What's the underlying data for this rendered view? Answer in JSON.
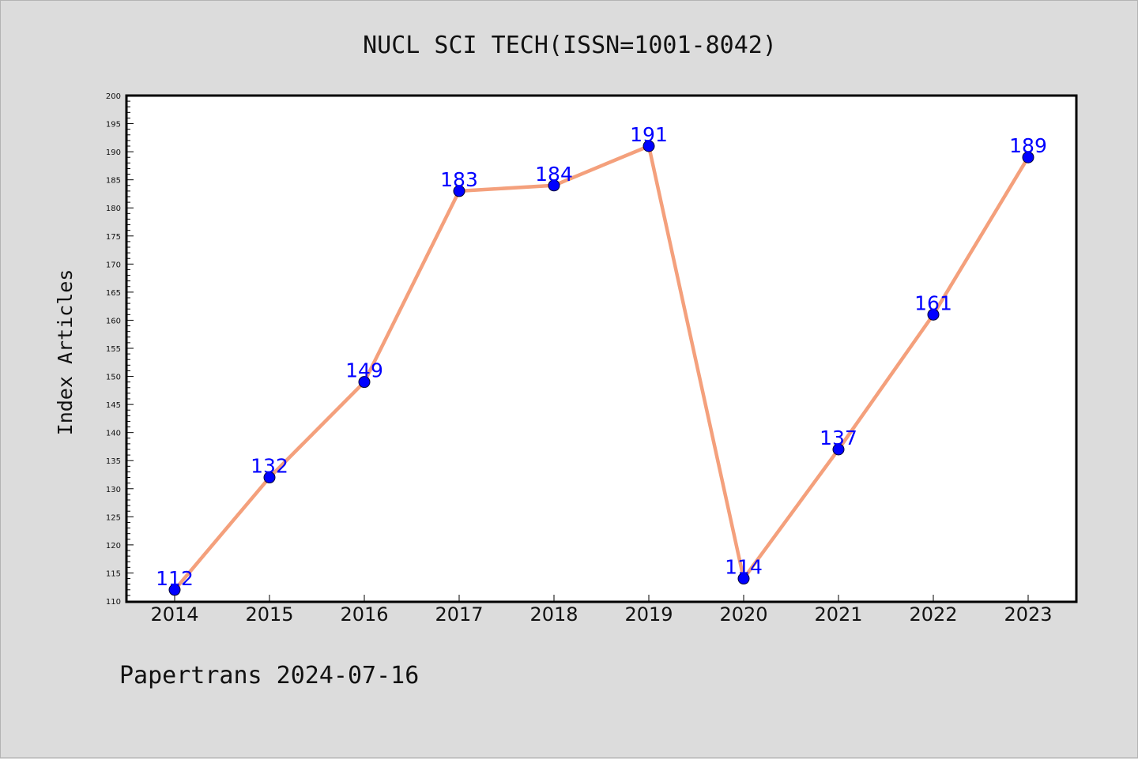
{
  "chart_data": {
    "type": "line",
    "title": "NUCL SCI TECH(ISSN=1001-8042)",
    "ylabel": "Index Articles",
    "xlabel": "",
    "categories": [
      "2014",
      "2015",
      "2016",
      "2017",
      "2018",
      "2019",
      "2020",
      "2021",
      "2022",
      "2023"
    ],
    "values": [
      112,
      132,
      149,
      183,
      184,
      191,
      114,
      137,
      161,
      189
    ],
    "ylim": [
      110,
      200
    ],
    "ytick_step": 5,
    "grid": false,
    "line_color": "#f4a07c",
    "marker_color": "#0000ff",
    "label_color": "#0000ff"
  },
  "footer": "Papertrans 2024-07-16"
}
